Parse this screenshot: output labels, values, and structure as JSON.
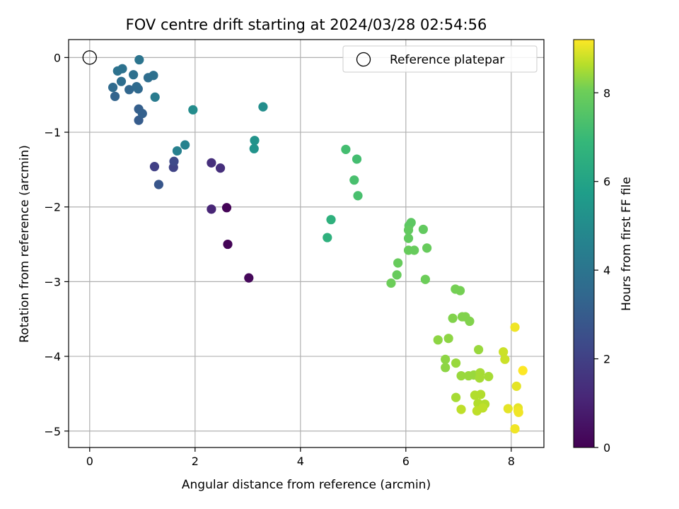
{
  "chart_data": {
    "type": "scatter",
    "title": "FOV centre drift starting at 2024/03/28 02:54:56",
    "xlabel": "Angular distance from reference (arcmin)",
    "ylabel": "Rotation from reference (arcmin)",
    "colorbar_label": "Hours from first FF file",
    "xlim": [
      -0.4,
      8.62
    ],
    "ylim": [
      -5.22,
      0.24
    ],
    "xticks": [
      0,
      2,
      4,
      6,
      8
    ],
    "yticks": [
      0,
      -1,
      -2,
      -3,
      -4,
      -5
    ],
    "colorbar_range": [
      0,
      9.2
    ],
    "colorbar_ticks": [
      0,
      2,
      4,
      6,
      8
    ],
    "colormap": "viridis",
    "grid": true,
    "legend_position": "top-right",
    "reference": {
      "name": "Reference platepar",
      "x": 0,
      "y": 0
    },
    "points": [
      {
        "x": 2.6,
        "y": -2.01,
        "h": 0.1
      },
      {
        "x": 2.62,
        "y": -2.5,
        "h": 0.1
      },
      {
        "x": 3.02,
        "y": -2.95,
        "h": 0.2
      },
      {
        "x": 2.31,
        "y": -2.03,
        "h": 1.1
      },
      {
        "x": 2.31,
        "y": -1.41,
        "h": 1.4
      },
      {
        "x": 2.48,
        "y": -1.48,
        "h": 1.4
      },
      {
        "x": 1.23,
        "y": -1.46,
        "h": 2.0
      },
      {
        "x": 1.59,
        "y": -1.47,
        "h": 2.1
      },
      {
        "x": 1.6,
        "y": -1.39,
        "h": 2.3
      },
      {
        "x": 1.31,
        "y": -1.7,
        "h": 2.8
      },
      {
        "x": 0.93,
        "y": -0.84,
        "h": 3.0
      },
      {
        "x": 0.93,
        "y": -0.69,
        "h": 3.1
      },
      {
        "x": 1.0,
        "y": -0.75,
        "h": 3.2
      },
      {
        "x": 0.48,
        "y": -0.52,
        "h": 3.3
      },
      {
        "x": 0.75,
        "y": -0.43,
        "h": 3.4
      },
      {
        "x": 0.92,
        "y": -0.42,
        "h": 3.5
      },
      {
        "x": 0.44,
        "y": -0.4,
        "h": 3.6
      },
      {
        "x": 0.89,
        "y": -0.39,
        "h": 3.6
      },
      {
        "x": 0.6,
        "y": -0.32,
        "h": 3.7
      },
      {
        "x": 1.11,
        "y": -0.27,
        "h": 3.7
      },
      {
        "x": 0.83,
        "y": -0.23,
        "h": 3.8
      },
      {
        "x": 1.21,
        "y": -0.24,
        "h": 3.8
      },
      {
        "x": 0.53,
        "y": -0.18,
        "h": 3.9
      },
      {
        "x": 0.62,
        "y": -0.15,
        "h": 3.9
      },
      {
        "x": 0.94,
        "y": -0.03,
        "h": 4.0
      },
      {
        "x": 1.24,
        "y": -0.53,
        "h": 4.3
      },
      {
        "x": 1.66,
        "y": -1.25,
        "h": 4.5
      },
      {
        "x": 1.81,
        "y": -1.17,
        "h": 4.6
      },
      {
        "x": 1.96,
        "y": -0.7,
        "h": 5.0
      },
      {
        "x": 3.29,
        "y": -0.66,
        "h": 5.1
      },
      {
        "x": 3.13,
        "y": -1.11,
        "h": 5.3
      },
      {
        "x": 3.12,
        "y": -1.22,
        "h": 5.3
      },
      {
        "x": 4.51,
        "y": -2.41,
        "h": 6.6
      },
      {
        "x": 4.58,
        "y": -2.17,
        "h": 6.6
      },
      {
        "x": 4.86,
        "y": -1.23,
        "h": 7.2
      },
      {
        "x": 5.07,
        "y": -1.36,
        "h": 7.2
      },
      {
        "x": 5.02,
        "y": -1.64,
        "h": 7.3
      },
      {
        "x": 5.09,
        "y": -1.85,
        "h": 7.3
      },
      {
        "x": 6.1,
        "y": -2.21,
        "h": 7.7
      },
      {
        "x": 6.06,
        "y": -2.25,
        "h": 7.7
      },
      {
        "x": 6.05,
        "y": -2.31,
        "h": 7.8
      },
      {
        "x": 6.05,
        "y": -2.42,
        "h": 7.8
      },
      {
        "x": 6.33,
        "y": -2.3,
        "h": 7.8
      },
      {
        "x": 6.05,
        "y": -2.58,
        "h": 7.9
      },
      {
        "x": 6.16,
        "y": -2.58,
        "h": 7.9
      },
      {
        "x": 6.4,
        "y": -2.55,
        "h": 7.9
      },
      {
        "x": 5.85,
        "y": -2.75,
        "h": 7.9
      },
      {
        "x": 5.83,
        "y": -2.91,
        "h": 7.9
      },
      {
        "x": 5.72,
        "y": -3.02,
        "h": 8.0
      },
      {
        "x": 6.37,
        "y": -2.97,
        "h": 8.0
      },
      {
        "x": 6.94,
        "y": -3.1,
        "h": 8.1
      },
      {
        "x": 7.03,
        "y": -3.12,
        "h": 8.1
      },
      {
        "x": 7.07,
        "y": -3.47,
        "h": 8.2
      },
      {
        "x": 7.13,
        "y": -3.47,
        "h": 8.2
      },
      {
        "x": 6.89,
        "y": -3.49,
        "h": 8.2
      },
      {
        "x": 7.21,
        "y": -3.53,
        "h": 8.2
      },
      {
        "x": 6.61,
        "y": -3.78,
        "h": 8.3
      },
      {
        "x": 6.81,
        "y": -3.76,
        "h": 8.3
      },
      {
        "x": 6.75,
        "y": -4.04,
        "h": 8.3
      },
      {
        "x": 6.75,
        "y": -4.15,
        "h": 8.3
      },
      {
        "x": 6.95,
        "y": -4.09,
        "h": 8.4
      },
      {
        "x": 7.05,
        "y": -4.26,
        "h": 8.4
      },
      {
        "x": 7.19,
        "y": -4.26,
        "h": 8.4
      },
      {
        "x": 7.29,
        "y": -4.25,
        "h": 8.4
      },
      {
        "x": 7.38,
        "y": -3.91,
        "h": 8.4
      },
      {
        "x": 7.41,
        "y": -4.22,
        "h": 8.5
      },
      {
        "x": 7.4,
        "y": -4.29,
        "h": 8.5
      },
      {
        "x": 7.57,
        "y": -4.27,
        "h": 8.5
      },
      {
        "x": 6.95,
        "y": -4.55,
        "h": 8.5
      },
      {
        "x": 7.31,
        "y": -4.52,
        "h": 8.6
      },
      {
        "x": 7.42,
        "y": -4.51,
        "h": 8.6
      },
      {
        "x": 7.37,
        "y": -4.63,
        "h": 8.6
      },
      {
        "x": 7.5,
        "y": -4.64,
        "h": 8.6
      },
      {
        "x": 7.46,
        "y": -4.69,
        "h": 8.7
      },
      {
        "x": 7.05,
        "y": -4.71,
        "h": 8.7
      },
      {
        "x": 7.35,
        "y": -4.73,
        "h": 8.7
      },
      {
        "x": 7.85,
        "y": -3.94,
        "h": 8.8
      },
      {
        "x": 7.88,
        "y": -4.04,
        "h": 8.8
      },
      {
        "x": 8.1,
        "y": -4.4,
        "h": 9.0
      },
      {
        "x": 7.94,
        "y": -4.7,
        "h": 9.0
      },
      {
        "x": 8.13,
        "y": -4.69,
        "h": 9.0
      },
      {
        "x": 8.13,
        "y": -4.73,
        "h": 9.1
      },
      {
        "x": 8.14,
        "y": -4.75,
        "h": 9.1
      },
      {
        "x": 8.07,
        "y": -4.97,
        "h": 9.1
      },
      {
        "x": 8.07,
        "y": -3.61,
        "h": 9.1
      },
      {
        "x": 8.22,
        "y": -4.19,
        "h": 9.2
      }
    ]
  }
}
